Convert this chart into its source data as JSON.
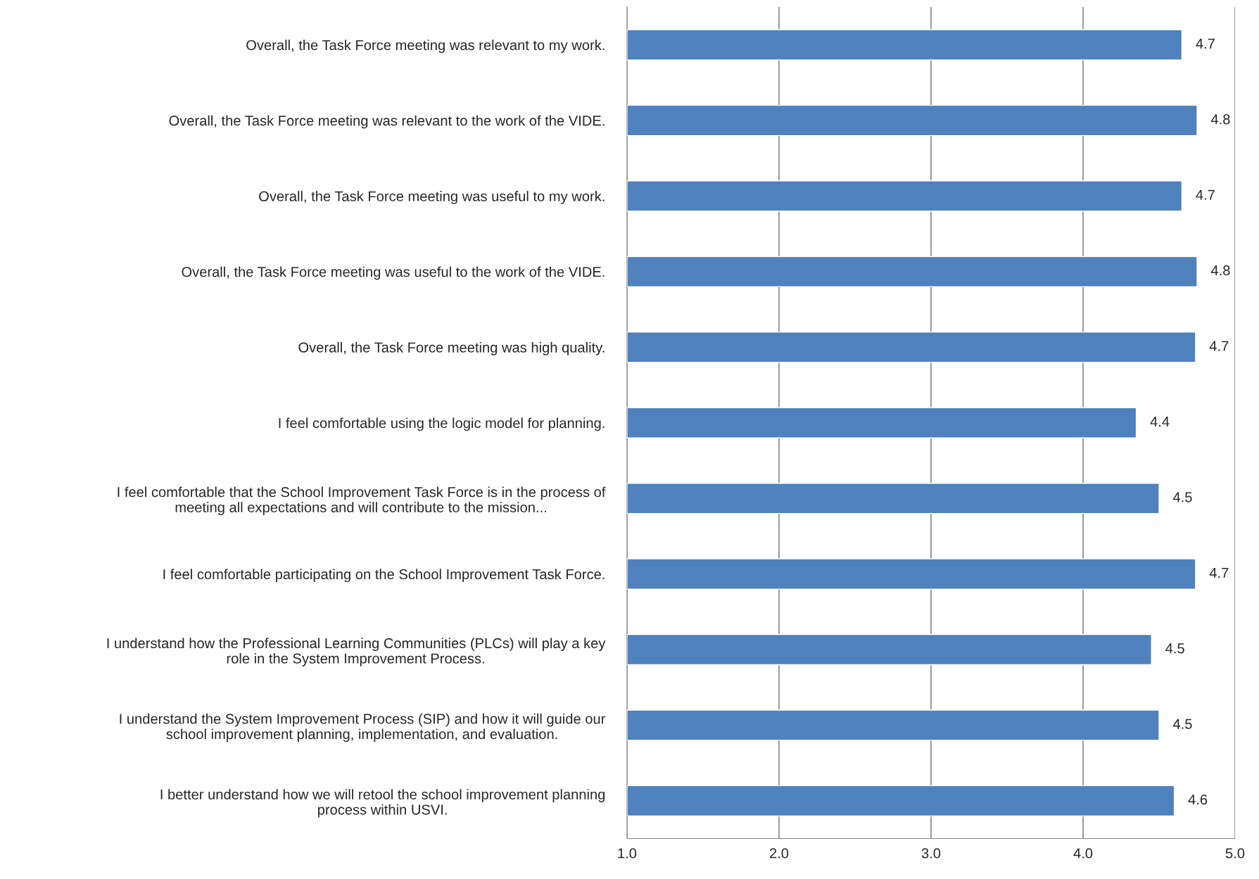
{
  "chart_data": {
    "type": "bar",
    "orientation": "horizontal",
    "categories": [
      "Overall, the Task Force meeting was relevant to my work.",
      "Overall, the Task Force meeting was relevant to the work of the VIDE.",
      "Overall, the Task Force meeting was useful to my work.",
      "Overall, the Task Force meeting was useful to the work of the VIDE.",
      "Overall, the Task Force meeting was high quality.",
      "I feel comfortable using the logic model for planning.",
      "I feel comfortable that the School Improvement Task Force is in the process of\nmeeting all expectations and will contribute to the mission...",
      "I feel comfortable participating on the School Improvement Task Force.",
      "I understand how the Professional Learning Communities (PLCs) will play a key\nrole in the System Improvement Process.",
      "I understand the System Improvement Process (SIP) and how it will guide our\nschool improvement planning, implementation, and evaluation.",
      "I better understand how we will retool the school improvement planning\nprocess within USVI."
    ],
    "values": [
      4.65,
      4.75,
      4.65,
      4.75,
      4.74,
      4.35,
      4.5,
      4.74,
      4.45,
      4.5,
      4.6
    ],
    "value_labels": [
      "4.7",
      "4.8",
      "4.7",
      "4.8",
      "4.7",
      "4.4",
      "4.5",
      "4.7",
      "4.5",
      "4.5",
      "4.6"
    ],
    "color": "#4f81bd",
    "xlim": [
      1,
      5
    ],
    "xticks": [
      {
        "value": 1,
        "label": "1.0"
      },
      {
        "value": 2,
        "label": "2.0"
      },
      {
        "value": 3,
        "label": "3.0"
      },
      {
        "value": 4,
        "label": "4.0"
      },
      {
        "value": 5,
        "label": "5.0"
      }
    ],
    "grid": "x"
  }
}
